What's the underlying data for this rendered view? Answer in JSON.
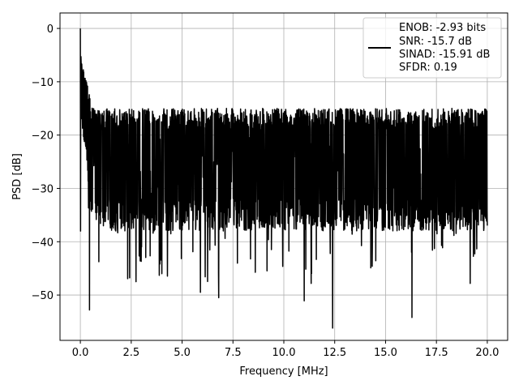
{
  "chart_data": {
    "type": "line",
    "title": "",
    "xlabel": "Frequency [MHz]",
    "ylabel": "PSD [dB]",
    "xlim": [
      -1.0,
      21.0
    ],
    "ylim": [
      -58.5,
      2.9
    ],
    "xticks": [
      0.0,
      2.5,
      5.0,
      7.5,
      10.0,
      12.5,
      15.0,
      17.5,
      20.0
    ],
    "xtick_labels": [
      "0.0",
      "2.5",
      "5.0",
      "7.5",
      "10.0",
      "12.5",
      "15.0",
      "17.5",
      "20.0"
    ],
    "yticks": [
      0,
      -10,
      -20,
      -30,
      -40,
      -50
    ],
    "ytick_labels": [
      "0",
      "−10",
      "−20",
      "−30",
      "−40",
      "−50"
    ],
    "grid": true,
    "line_color": "#000000",
    "legend": {
      "placement": "top-right",
      "entries": [
        "ENOB: -2.93 bits",
        "SNR: -15.7 dB",
        "SINAD: -15.91 dB",
        "SFDR: 0.19"
      ]
    },
    "series": [
      {
        "x_start": 0.0,
        "x_end": 20.0,
        "points": 2048,
        "peak": 0.0,
        "floor_mean": -26,
        "noise_upper_typical": -17,
        "noise_lower_typical": -35,
        "min": -56.2,
        "notable_dips": [
          {
            "x": 0.45,
            "y": -52.8
          },
          {
            "x": 5.9,
            "y": -49.5
          },
          {
            "x": 6.8,
            "y": -50.5
          },
          {
            "x": 12.4,
            "y": -56.2
          },
          {
            "x": 16.3,
            "y": -54.2
          },
          {
            "x": 11.0,
            "y": -51.1
          }
        ]
      }
    ]
  }
}
